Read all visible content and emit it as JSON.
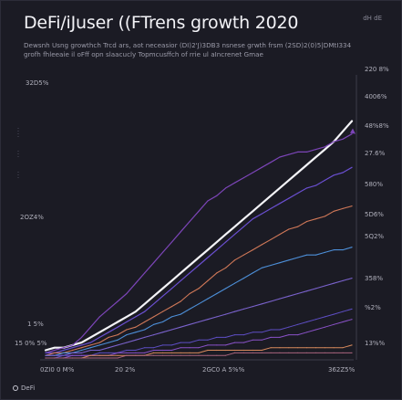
{
  "chart_data": {
    "type": "line",
    "title": "DeFi/iJuser ((FTrens growth 2020",
    "subtitle_lines": [
      "Dewsnh Usng growthch Trcd ars, aot neceasior (DI)2'J)3DB3 nsnese grwth frsm (2SD)2(0)5|DMtI334",
      "grofh fhleeaie il oFff opn slaacucly Topmcusffch of rrie ul aIncrenet Gmae"
    ],
    "corner_label": "dH dE",
    "x_tick_labels": [
      "0ZI0 0 M%",
      "20 2%",
      "2GC0 A 5%%",
      "362Z5%"
    ],
    "y_tick_labels_left": [
      "32D5%",
      "2OZ4%",
      "1 5%",
      "15 0% 5%"
    ],
    "y_tick_labels_right": [
      "220 8%",
      "4006%",
      "48%8%",
      "27.6%",
      "580%",
      "5D6%",
      "5Q2%",
      "358%",
      "%2%",
      "13%%"
    ],
    "x": [
      0,
      1,
      2,
      3,
      4,
      5,
      6,
      7,
      8,
      9,
      10,
      11,
      12,
      13,
      14,
      15,
      16,
      17,
      18,
      19,
      20,
      21,
      22,
      23,
      24,
      25,
      26,
      27,
      28,
      29,
      30,
      31,
      32,
      33,
      34
    ],
    "ylim": [
      0,
      100
    ],
    "grid": false,
    "legend": "none",
    "series": [
      {
        "color": "#f4f4f8",
        "width": 2.2,
        "values": [
          3,
          4,
          4,
          5,
          6,
          8,
          10,
          12,
          14,
          16,
          18,
          21,
          24,
          27,
          30,
          33,
          36,
          39,
          42,
          45,
          48,
          51,
          54,
          57,
          60,
          63,
          66,
          69,
          72,
          75,
          78,
          81,
          84,
          88,
          92
        ]
      },
      {
        "color": "#7c45b8",
        "width": 1.2,
        "values": [
          2,
          3,
          4,
          5,
          8,
          12,
          16,
          19,
          22,
          25,
          29,
          33,
          37,
          41,
          45,
          49,
          53,
          57,
          61,
          63,
          66,
          68,
          70,
          72,
          74,
          76,
          78,
          79,
          80,
          80,
          81,
          82,
          84,
          85,
          87
        ],
        "end_marker": true
      },
      {
        "color": "#6a4fd0",
        "width": 1.2,
        "values": [
          2,
          2,
          3,
          4,
          5,
          6,
          8,
          10,
          12,
          14,
          16,
          18,
          21,
          24,
          27,
          30,
          33,
          36,
          39,
          42,
          45,
          48,
          51,
          54,
          56,
          58,
          60,
          62,
          64,
          66,
          67,
          69,
          71,
          72,
          74
        ]
      },
      {
        "color": "#d07858",
        "width": 1.1,
        "values": [
          1,
          2,
          2,
          3,
          4,
          5,
          6,
          8,
          9,
          11,
          12,
          14,
          16,
          18,
          20,
          22,
          25,
          27,
          30,
          33,
          35,
          38,
          40,
          42,
          44,
          46,
          48,
          50,
          51,
          53,
          54,
          55,
          57,
          58,
          59
        ]
      },
      {
        "color": "#4d8fd8",
        "width": 1.1,
        "values": [
          1,
          1,
          2,
          2,
          3,
          4,
          5,
          6,
          7,
          9,
          10,
          11,
          13,
          14,
          16,
          17,
          19,
          21,
          23,
          25,
          27,
          29,
          31,
          33,
          35,
          36,
          37,
          38,
          39,
          40,
          40,
          41,
          42,
          42,
          43
        ]
      },
      {
        "color": "#7a62cc",
        "width": 1.1,
        "values": [
          1,
          1,
          1,
          2,
          2,
          3,
          3,
          4,
          5,
          6,
          7,
          8,
          9,
          10,
          11,
          12,
          13,
          14,
          15,
          16,
          17,
          18,
          19,
          20,
          21,
          22,
          23,
          24,
          25,
          26,
          27,
          28,
          29,
          30,
          31
        ]
      },
      {
        "color": "#5e4ec4",
        "width": 1.0,
        "values": [
          0,
          0,
          1,
          1,
          1,
          1,
          2,
          2,
          2,
          3,
          3,
          4,
          4,
          5,
          5,
          6,
          6,
          7,
          7,
          8,
          8,
          9,
          9,
          10,
          10,
          11,
          11,
          12,
          13,
          14,
          15,
          16,
          17,
          18,
          19
        ]
      },
      {
        "color": "#8a52c8",
        "width": 1.0,
        "values": [
          0,
          0,
          0,
          1,
          1,
          1,
          1,
          1,
          2,
          2,
          2,
          2,
          3,
          3,
          3,
          4,
          4,
          4,
          5,
          5,
          5,
          6,
          6,
          7,
          7,
          8,
          8,
          9,
          9,
          10,
          11,
          12,
          13,
          14,
          15
        ]
      },
      {
        "color": "#d88a5c",
        "width": 1.0,
        "values": [
          0,
          0,
          0,
          0,
          0,
          1,
          1,
          1,
          1,
          1,
          1,
          1,
          2,
          2,
          2,
          2,
          2,
          2,
          3,
          3,
          3,
          3,
          3,
          3,
          3,
          4,
          4,
          4,
          4,
          4,
          4,
          4,
          4,
          4,
          5
        ]
      },
      {
        "color": "#a8647c",
        "width": 1.0,
        "values": [
          0,
          0,
          0,
          0,
          0,
          0,
          0,
          0,
          0,
          1,
          1,
          1,
          1,
          1,
          1,
          1,
          1,
          1,
          1,
          1,
          1,
          2,
          2,
          2,
          2,
          2,
          2,
          2,
          2,
          2,
          2,
          2,
          2,
          2,
          2
        ]
      }
    ]
  },
  "footer": {
    "brand": "DeFi",
    "brand_icon": "circle-logo-icon"
  }
}
